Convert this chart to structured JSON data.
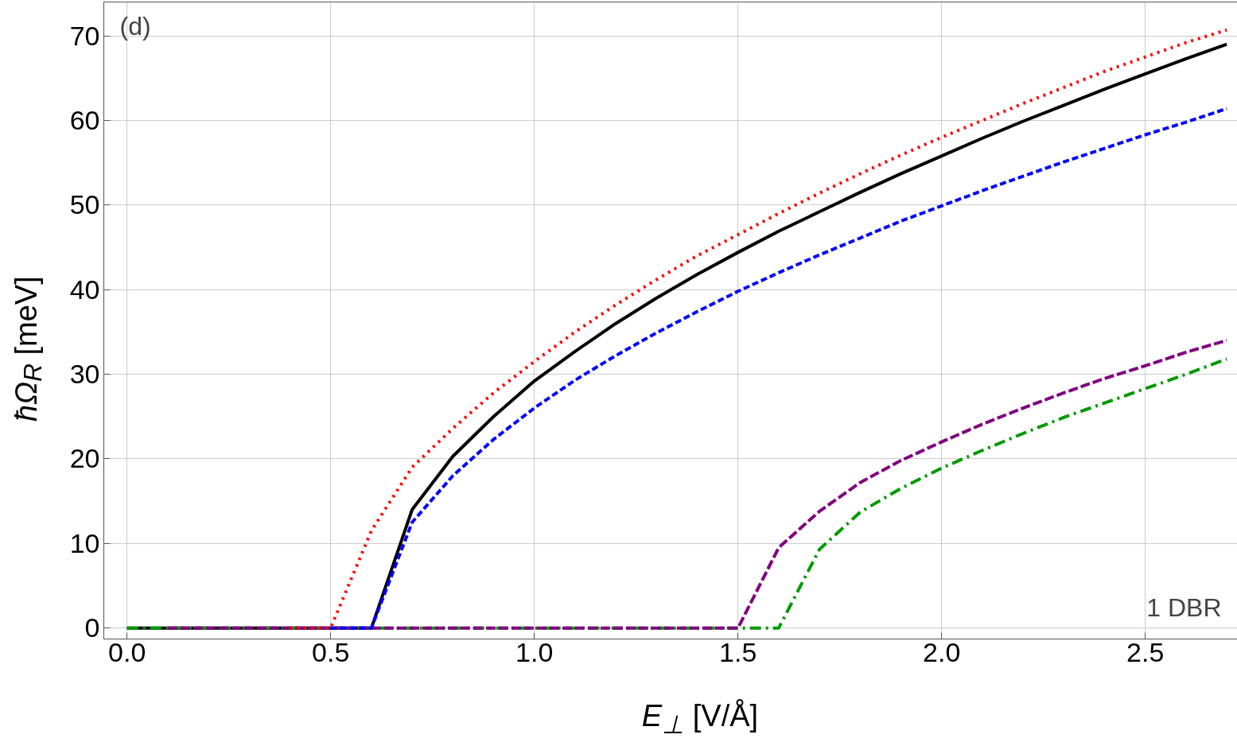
{
  "chart_data": {
    "type": "line",
    "xlabel": "E$_{⊥}$ [V/Å]",
    "ylabel": "ħΩ$_{R}$ [meV]",
    "annotations": [
      "(d)",
      "1 DBR"
    ],
    "x": [
      0.0,
      0.1,
      0.2,
      0.3,
      0.4,
      0.5,
      0.6,
      0.7,
      0.8,
      0.9,
      1.0,
      1.1,
      1.2,
      1.3,
      1.4,
      1.5,
      1.6,
      1.7,
      1.8,
      1.9,
      2.0,
      2.1,
      2.2,
      2.3,
      2.4,
      2.5,
      2.6,
      2.7
    ],
    "series": [
      {
        "color": "#000000",
        "line_style": "solid",
        "values": [
          0,
          0,
          0,
          0,
          0,
          0,
          0,
          14,
          20.3,
          25,
          29.2,
          32.7,
          36,
          39,
          41.8,
          44.4,
          46.9,
          49.2,
          51.5,
          53.7,
          55.8,
          57.9,
          59.9,
          61.8,
          63.7,
          65.5,
          67.3,
          69.0
        ]
      },
      {
        "color": "#009900",
        "line_style": "dashdot",
        "values": [
          0,
          0,
          0,
          0,
          0,
          0,
          0,
          0,
          0,
          0,
          0,
          0,
          0,
          0,
          0,
          0,
          0,
          9.3,
          13.7,
          16.5,
          18.9,
          21,
          23,
          24.9,
          26.6,
          28.3,
          30,
          31.8
        ]
      },
      {
        "color": "#800080",
        "line_style": "longdash",
        "values": [
          null,
          0,
          0,
          0,
          0,
          0,
          0,
          0,
          0,
          0,
          0,
          0,
          0,
          0,
          0,
          0,
          9.5,
          13.8,
          17.2,
          19.8,
          22.0,
          24.1,
          26,
          27.8,
          29.5,
          31,
          32.6,
          34
        ]
      },
      {
        "color": "#0000ff",
        "line_style": "dashed",
        "values": [
          null,
          null,
          null,
          null,
          null,
          0,
          0,
          12.5,
          18,
          22.3,
          26,
          29.3,
          32.2,
          34.9,
          37.4,
          39.8,
          42,
          44.1,
          46.1,
          48.1,
          49.9,
          51.7,
          53.4,
          55.1,
          56.7,
          58.3,
          59.8,
          61.4
        ]
      },
      {
        "color": "#ff0000",
        "line_style": "dotted",
        "values": [
          null,
          null,
          null,
          null,
          0,
          0,
          11.5,
          19,
          23.6,
          27.8,
          31.5,
          35,
          38.2,
          41.2,
          44,
          46.5,
          49,
          51.4,
          53.7,
          55.9,
          58,
          60,
          62,
          63.9,
          65.8,
          67.5,
          69.2,
          70.7
        ]
      }
    ],
    "xlim": [
      -0.057,
      2.73
    ],
    "ylim": [
      -1.3,
      74
    ],
    "xticks": [
      {
        "value": 0,
        "label": "0.0"
      },
      {
        "value": 0.5,
        "label": "0.5"
      },
      {
        "value": 1,
        "label": "1.0"
      },
      {
        "value": 1.5,
        "label": "1.5"
      },
      {
        "value": 2,
        "label": "2.0"
      },
      {
        "value": 2.5,
        "label": "2.5"
      }
    ],
    "yticks": [
      0,
      10,
      20,
      30,
      40,
      50,
      60,
      70
    ],
    "grid": true,
    "marker": "none"
  }
}
